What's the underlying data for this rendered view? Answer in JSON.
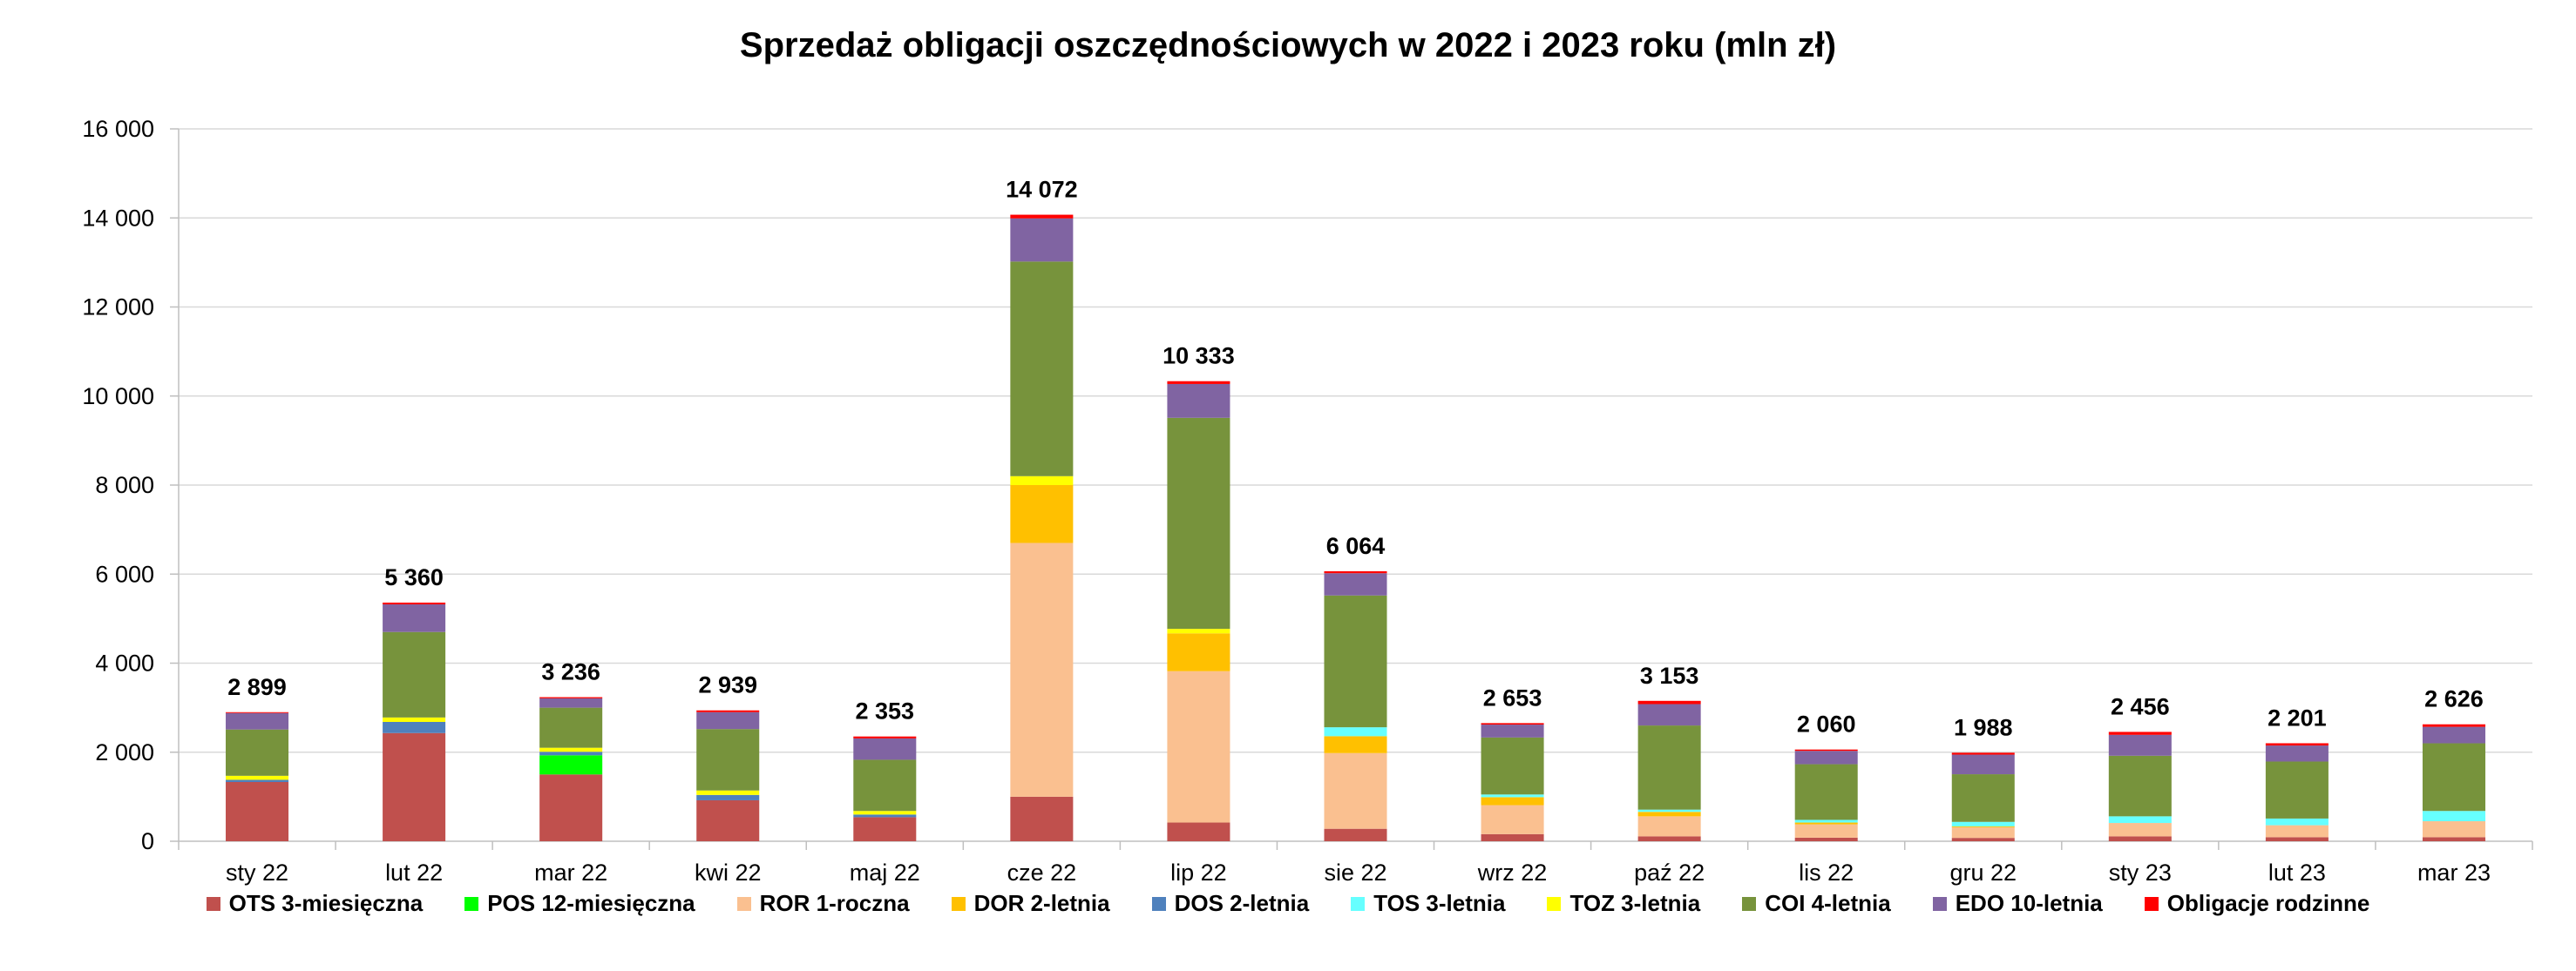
{
  "chart_data": {
    "type": "bar",
    "stacked": true,
    "title": "Sprzedaż obligacji oszczędnościowych w 2022 i 2023 roku (mln zł)",
    "xlabel": "",
    "ylabel": "",
    "ylim": [
      0,
      16000
    ],
    "yticks": [
      0,
      2000,
      4000,
      6000,
      8000,
      10000,
      12000,
      14000,
      16000
    ],
    "ytick_labels": [
      "0",
      "2 000",
      "4 000",
      "6 000",
      "8 000",
      "10 000",
      "12 000",
      "14 000",
      "16 000"
    ],
    "grid": true,
    "legend_position": "bottom",
    "categories": [
      "sty 22",
      "lut 22",
      "mar 22",
      "kwi 22",
      "maj 22",
      "cze 22",
      "lip 22",
      "sie 22",
      "wrz 22",
      "paź 22",
      "lis 22",
      "gru 22",
      "sty 23",
      "lut 23",
      "mar 23"
    ],
    "totals": [
      2899,
      5360,
      3236,
      2939,
      2353,
      14072,
      10333,
      6064,
      2653,
      3153,
      2060,
      1988,
      2456,
      2201,
      2626
    ],
    "total_labels": [
      "2 899",
      "5 360",
      "3 236",
      "2 939",
      "2 353",
      "14 072",
      "10 333",
      "6 064",
      "2 653",
      "3 153",
      "2 060",
      "1 988",
      "2 456",
      "2 201",
      "2 626"
    ],
    "series": [
      {
        "name": "OTS 3-miesięczna",
        "color": "#C0504D",
        "values": [
          1330,
          2430,
          1500,
          920,
          540,
          1000,
          420,
          280,
          160,
          110,
          80,
          75,
          110,
          90,
          90
        ]
      },
      {
        "name": "POS 12-miesięczna",
        "color": "#00FF00",
        "values": [
          0,
          0,
          430,
          0,
          0,
          0,
          0,
          0,
          0,
          0,
          0,
          0,
          0,
          0,
          0
        ]
      },
      {
        "name": "ROR 1-roczna",
        "color": "#FAC090",
        "values": [
          0,
          0,
          0,
          0,
          0,
          5700,
          3400,
          1700,
          650,
          450,
          300,
          240,
          300,
          270,
          360
        ]
      },
      {
        "name": "DOR 2-letnia",
        "color": "#FFC000",
        "values": [
          0,
          0,
          0,
          0,
          0,
          1300,
          850,
          380,
          180,
          100,
          40,
          20,
          0,
          0,
          0
        ]
      },
      {
        "name": "DOS 2-letnia",
        "color": "#4F81BD",
        "values": [
          50,
          250,
          80,
          120,
          60,
          0,
          0,
          0,
          0,
          0,
          0,
          0,
          0,
          0,
          0
        ]
      },
      {
        "name": "TOS 3-letnia",
        "color": "#66FFFF",
        "values": [
          0,
          0,
          0,
          0,
          0,
          0,
          0,
          200,
          60,
          50,
          60,
          100,
          150,
          150,
          230
        ]
      },
      {
        "name": "TOZ 3-letnia",
        "color": "#FFFF00",
        "values": [
          90,
          100,
          90,
          100,
          80,
          200,
          100,
          0,
          0,
          0,
          0,
          0,
          0,
          0,
          0
        ]
      },
      {
        "name": "COI 4-letnia",
        "color": "#77933C",
        "values": [
          1040,
          1920,
          900,
          1380,
          1150,
          4820,
          4740,
          2960,
          1280,
          1890,
          1250,
          1070,
          1360,
          1280,
          1520
        ]
      },
      {
        "name": "EDO 10-letnia",
        "color": "#8064A2",
        "values": [
          370,
          620,
          210,
          380,
          480,
          970,
          760,
          500,
          290,
          480,
          300,
          440,
          470,
          360,
          370
        ]
      },
      {
        "name": "Obligacje rodzinne",
        "color": "#FF0000",
        "values": [
          19,
          40,
          26,
          39,
          43,
          82,
          63,
          44,
          33,
          73,
          30,
          43,
          66,
          51,
          56
        ]
      }
    ]
  }
}
